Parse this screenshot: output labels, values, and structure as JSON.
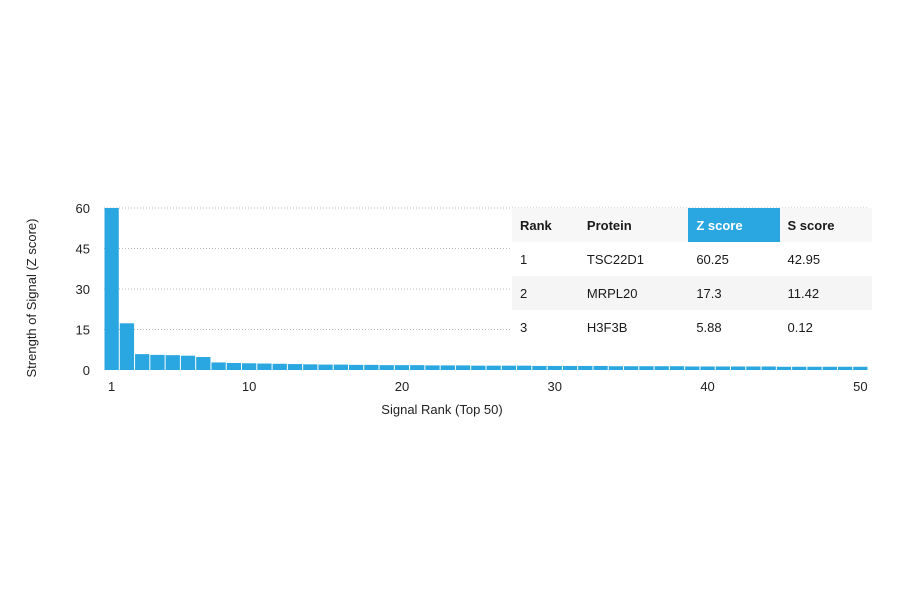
{
  "chart_data": {
    "type": "bar",
    "xlabel": "Signal Rank (Top 50)",
    "ylabel": "Strength of Signal (Z score)",
    "ylim": [
      0,
      60
    ],
    "yticks": [
      0,
      15,
      30,
      45,
      60
    ],
    "xticks": [
      1,
      10,
      20,
      30,
      40,
      50
    ],
    "grid": true,
    "bar_color": "#2aa7e0",
    "x": [
      1,
      2,
      3,
      4,
      5,
      6,
      7,
      8,
      9,
      10,
      11,
      12,
      13,
      14,
      15,
      16,
      17,
      18,
      19,
      20,
      21,
      22,
      23,
      24,
      25,
      26,
      27,
      28,
      29,
      30,
      31,
      32,
      33,
      34,
      35,
      36,
      37,
      38,
      39,
      40,
      41,
      42,
      43,
      44,
      45,
      46,
      47,
      48,
      49,
      50
    ],
    "values": [
      60.25,
      17.3,
      5.88,
      5.6,
      5.5,
      5.3,
      4.8,
      2.8,
      2.6,
      2.5,
      2.4,
      2.3,
      2.2,
      2.1,
      2.0,
      2.0,
      1.9,
      1.9,
      1.8,
      1.8,
      1.8,
      1.7,
      1.7,
      1.7,
      1.6,
      1.6,
      1.6,
      1.6,
      1.5,
      1.5,
      1.5,
      1.5,
      1.5,
      1.4,
      1.4,
      1.4,
      1.4,
      1.4,
      1.3,
      1.3,
      1.3,
      1.3,
      1.3,
      1.3,
      1.2,
      1.2,
      1.2,
      1.2,
      1.2,
      1.2
    ]
  },
  "table": {
    "headers": [
      "Rank",
      "Protein",
      "Z score",
      "S score"
    ],
    "highlight_column": 2,
    "rows": [
      [
        "1",
        "TSC22D1",
        "60.25",
        "42.95"
      ],
      [
        "2",
        "MRPL20",
        "17.3",
        "11.42"
      ],
      [
        "3",
        "H3F3B",
        "5.88",
        "0.12"
      ]
    ]
  }
}
